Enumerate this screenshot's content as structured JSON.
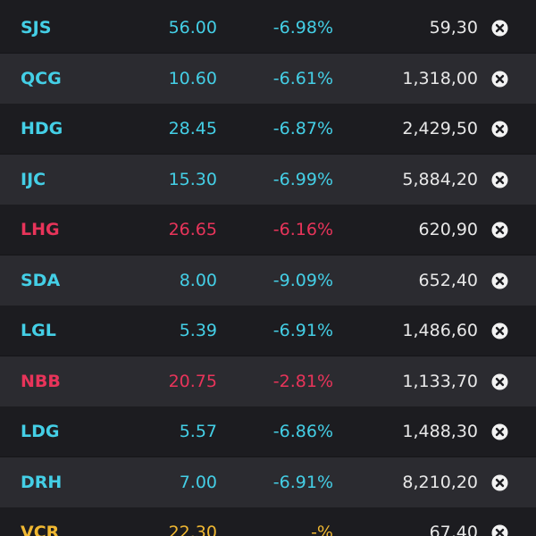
{
  "colors": {
    "up_or_floor": "#44cfe6",
    "down": "#e8345a",
    "reference": "#f0b832",
    "volume_text": "#e8e8e8",
    "row_dark": "#1c1c20",
    "row_light": "#2b2b30"
  },
  "remove_icon": "close-circle-icon",
  "rows": [
    {
      "symbol": "SJS",
      "price": "56.00",
      "change": "-6.98%",
      "volume": "59,30",
      "color": "cyan"
    },
    {
      "symbol": "QCG",
      "price": "10.60",
      "change": "-6.61%",
      "volume": "1,318,00",
      "color": "cyan"
    },
    {
      "symbol": "HDG",
      "price": "28.45",
      "change": "-6.87%",
      "volume": "2,429,50",
      "color": "cyan"
    },
    {
      "symbol": "IJC",
      "price": "15.30",
      "change": "-6.99%",
      "volume": "5,884,20",
      "color": "cyan"
    },
    {
      "symbol": "LHG",
      "price": "26.65",
      "change": "-6.16%",
      "volume": "620,90",
      "color": "red"
    },
    {
      "symbol": "SDA",
      "price": "8.00",
      "change": "-9.09%",
      "volume": "652,40",
      "color": "cyan"
    },
    {
      "symbol": "LGL",
      "price": "5.39",
      "change": "-6.91%",
      "volume": "1,486,60",
      "color": "cyan"
    },
    {
      "symbol": "NBB",
      "price": "20.75",
      "change": "-2.81%",
      "volume": "1,133,70",
      "color": "red"
    },
    {
      "symbol": "LDG",
      "price": "5.57",
      "change": "-6.86%",
      "volume": "1,488,30",
      "color": "cyan"
    },
    {
      "symbol": "DRH",
      "price": "7.00",
      "change": "-6.91%",
      "volume": "8,210,20",
      "color": "cyan"
    },
    {
      "symbol": "VCR",
      "price": "22.30",
      "change": "-%",
      "volume": "67,40",
      "color": "yellow"
    }
  ]
}
